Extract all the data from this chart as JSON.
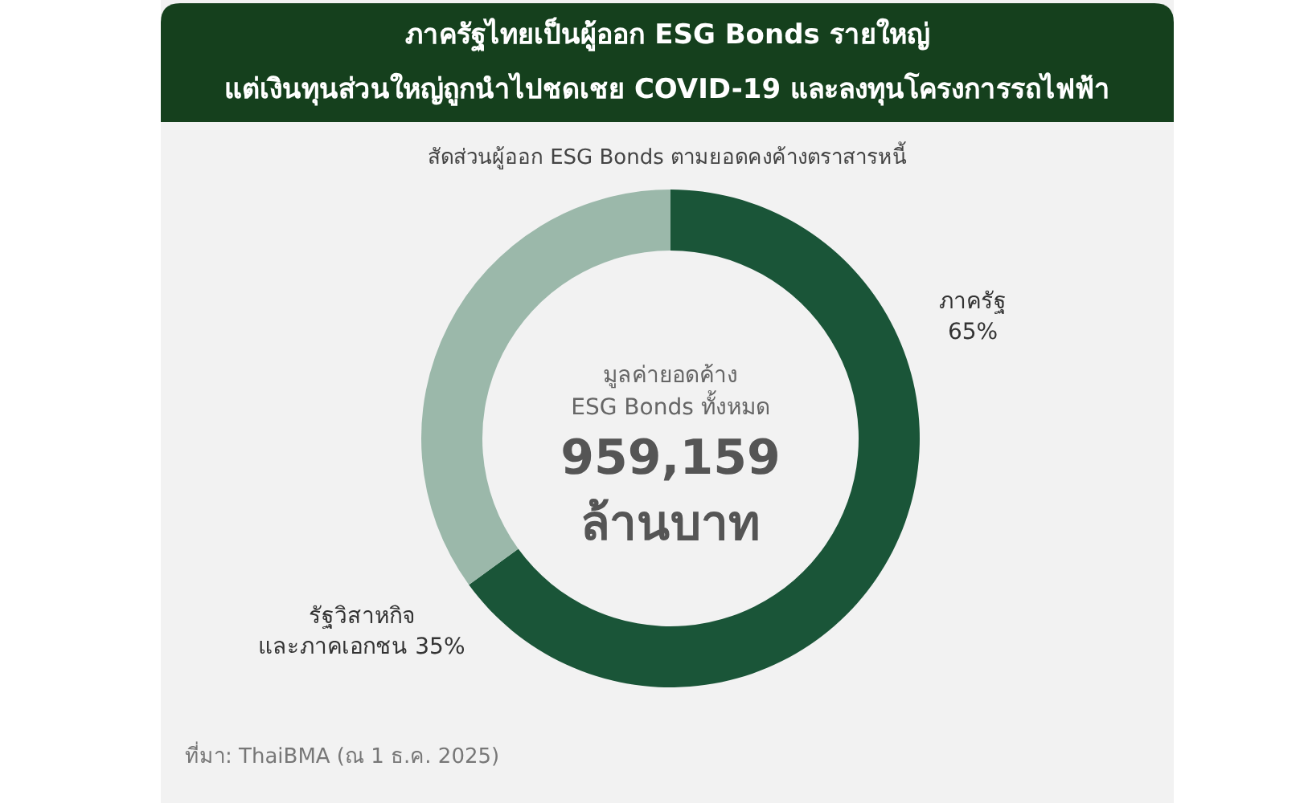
{
  "chart_data": {
    "type": "donut",
    "title": "ภาครัฐไทยเป็นผู้ออก ESG Bonds รายใหญ่\nแต่เงินทุนส่วนใหญ่ถูกนำไปชดเชย COVID-19 และลงทุนโครงการรถไฟฟ้า",
    "subtitle": "สัดส่วนผู้ออก ESG Bonds ตามยอดคงค้างตราสารหนี้",
    "categories": [
      "ภาครัฐ",
      "รัฐวิสาหกิจ\nและภาคเอกชน"
    ],
    "values": [
      65,
      35
    ],
    "colors": [
      "#1a5538",
      "#9bb8aa"
    ],
    "value_labels": [
      "65%",
      "35%"
    ],
    "annotations": [
      "มูลค่ายอดค้าง\nESG Bonds ทั้งหมด",
      "959,159",
      "ล้านบาท",
      "ที่มา: ThaiBMA (ณ 1 ธ.ค. 2025)"
    ],
    "legend": false
  }
}
